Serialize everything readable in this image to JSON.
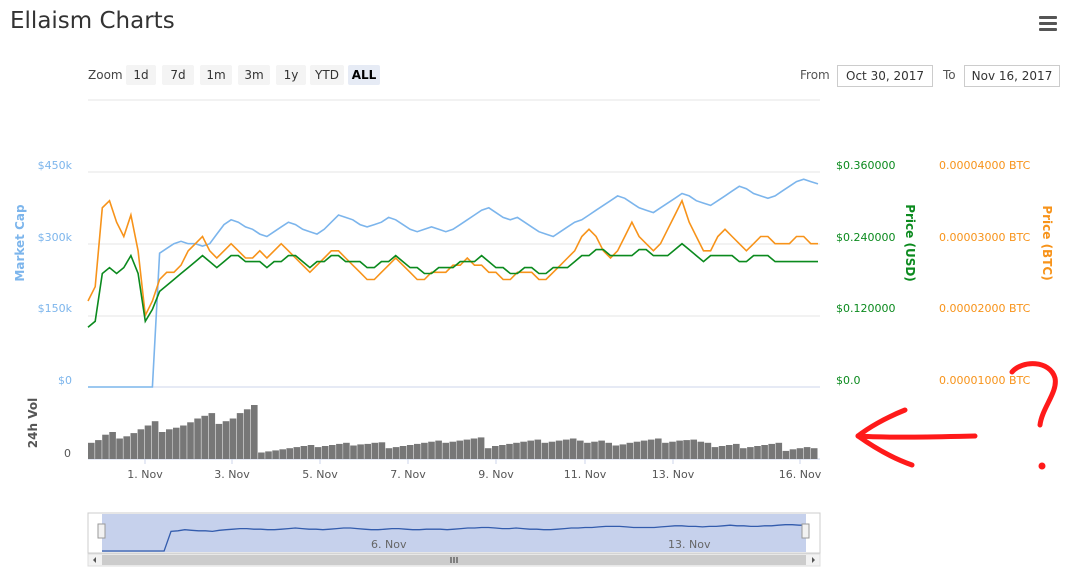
{
  "page": {
    "title": "Ellaism Charts"
  },
  "toolbar": {
    "zoom_label": "Zoom",
    "zoom_buttons": [
      "1d",
      "7d",
      "1m",
      "3m",
      "1y",
      "YTD",
      "ALL"
    ],
    "active_zoom": "ALL",
    "from_label": "From",
    "from_value": "Oct 30, 2017",
    "to_label": "To",
    "to_value": "Nov 16, 2017"
  },
  "annotation": {
    "text": "?",
    "color": "#ff0000"
  },
  "chart_data": {
    "type": "line",
    "x_ticks": [
      "1. Nov",
      "3. Nov",
      "5. Nov",
      "7. Nov",
      "9. Nov",
      "11. Nov",
      "13. Nov",
      "16. Nov"
    ],
    "x_range": [
      "2017-10-30",
      "2017-11-16"
    ],
    "navigator_ticks": [
      "6. Nov",
      "13. Nov"
    ],
    "axes": {
      "market_cap": {
        "label": "Market Cap",
        "ticks": [
          "$0",
          "$150k",
          "$300k",
          "$450k"
        ],
        "range": [
          0,
          450000
        ],
        "color": "#7cb5ec"
      },
      "price_usd": {
        "label": "Price (USD)",
        "ticks": [
          "$0.0",
          "$0.120000",
          "$0.240000",
          "$0.360000"
        ],
        "range": [
          0,
          0.36
        ],
        "color": "#0b8a1e"
      },
      "price_btc": {
        "label": "Price (BTC)",
        "ticks": [
          "0.00001000 BTC",
          "0.00002000 BTC",
          "0.00003000 BTC",
          "0.00004000 BTC"
        ],
        "range": [
          1e-05,
          4e-05
        ],
        "color": "#f7931a"
      },
      "volume": {
        "label": "24h Vol",
        "ticks": [
          "0"
        ],
        "color": "#666666"
      }
    },
    "grid": true,
    "series": [
      {
        "name": "Market Cap",
        "color": "#7cb5ec",
        "values": [
          0,
          0,
          0,
          0,
          0,
          0,
          0,
          0,
          0,
          0,
          280000,
          290000,
          300000,
          305000,
          300000,
          300000,
          295000,
          300000,
          320000,
          340000,
          350000,
          345000,
          335000,
          330000,
          320000,
          315000,
          325000,
          335000,
          345000,
          340000,
          330000,
          325000,
          320000,
          330000,
          345000,
          360000,
          355000,
          350000,
          340000,
          335000,
          340000,
          345000,
          355000,
          350000,
          340000,
          330000,
          325000,
          330000,
          335000,
          330000,
          325000,
          330000,
          340000,
          350000,
          360000,
          370000,
          375000,
          365000,
          355000,
          350000,
          355000,
          345000,
          335000,
          325000,
          320000,
          315000,
          325000,
          335000,
          345000,
          350000,
          360000,
          370000,
          380000,
          390000,
          400000,
          395000,
          385000,
          375000,
          370000,
          365000,
          375000,
          385000,
          395000,
          405000,
          400000,
          390000,
          385000,
          380000,
          390000,
          400000,
          410000,
          420000,
          415000,
          405000,
          400000,
          395000,
          400000,
          410000,
          420000,
          430000,
          435000,
          430000,
          425000
        ]
      },
      {
        "name": "Price (USD)",
        "color": "#0b8a1e",
        "values": [
          0.1,
          0.11,
          0.19,
          0.2,
          0.19,
          0.2,
          0.22,
          0.19,
          0.11,
          0.13,
          0.16,
          0.17,
          0.18,
          0.19,
          0.2,
          0.21,
          0.22,
          0.21,
          0.2,
          0.21,
          0.22,
          0.22,
          0.21,
          0.21,
          0.21,
          0.2,
          0.21,
          0.21,
          0.22,
          0.22,
          0.21,
          0.2,
          0.21,
          0.21,
          0.22,
          0.22,
          0.21,
          0.21,
          0.21,
          0.2,
          0.2,
          0.21,
          0.21,
          0.22,
          0.21,
          0.2,
          0.2,
          0.19,
          0.19,
          0.2,
          0.2,
          0.2,
          0.21,
          0.21,
          0.21,
          0.22,
          0.21,
          0.2,
          0.2,
          0.19,
          0.19,
          0.2,
          0.2,
          0.19,
          0.19,
          0.2,
          0.2,
          0.2,
          0.21,
          0.22,
          0.22,
          0.23,
          0.23,
          0.22,
          0.22,
          0.22,
          0.22,
          0.23,
          0.23,
          0.22,
          0.22,
          0.22,
          0.23,
          0.24,
          0.23,
          0.22,
          0.21,
          0.22,
          0.22,
          0.22,
          0.22,
          0.21,
          0.21,
          0.22,
          0.22,
          0.22,
          0.21,
          0.21,
          0.21,
          0.21,
          0.21,
          0.21,
          0.21
        ]
      },
      {
        "name": "Price (BTC)",
        "color": "#f7931a",
        "values": [
          2.2e-05,
          2.4e-05,
          3.5e-05,
          3.6e-05,
          3.3e-05,
          3.1e-05,
          3.4e-05,
          2.9e-05,
          2e-05,
          2.2e-05,
          2.5e-05,
          2.6e-05,
          2.6e-05,
          2.7e-05,
          2.9e-05,
          3e-05,
          3.1e-05,
          2.9e-05,
          2.8e-05,
          2.9e-05,
          3e-05,
          2.9e-05,
          2.8e-05,
          2.8e-05,
          2.9e-05,
          2.8e-05,
          2.9e-05,
          3e-05,
          2.9e-05,
          2.8e-05,
          2.7e-05,
          2.6e-05,
          2.7e-05,
          2.8e-05,
          2.9e-05,
          2.9e-05,
          2.8e-05,
          2.7e-05,
          2.6e-05,
          2.5e-05,
          2.5e-05,
          2.6e-05,
          2.7e-05,
          2.8e-05,
          2.7e-05,
          2.6e-05,
          2.5e-05,
          2.5e-05,
          2.6e-05,
          2.6e-05,
          2.6e-05,
          2.7e-05,
          2.7e-05,
          2.8e-05,
          2.7e-05,
          2.7e-05,
          2.6e-05,
          2.6e-05,
          2.5e-05,
          2.5e-05,
          2.6e-05,
          2.6e-05,
          2.6e-05,
          2.5e-05,
          2.5e-05,
          2.6e-05,
          2.7e-05,
          2.8e-05,
          2.9e-05,
          3.1e-05,
          3.2e-05,
          3.1e-05,
          2.9e-05,
          2.8e-05,
          2.9e-05,
          3.1e-05,
          3.3e-05,
          3.1e-05,
          3e-05,
          2.9e-05,
          3e-05,
          3.2e-05,
          3.4e-05,
          3.6e-05,
          3.3e-05,
          3.1e-05,
          2.9e-05,
          2.9e-05,
          3.1e-05,
          3.2e-05,
          3.1e-05,
          3e-05,
          2.9e-05,
          3e-05,
          3.1e-05,
          3.1e-05,
          3e-05,
          3e-05,
          3e-05,
          3.1e-05,
          3.1e-05,
          3e-05,
          3e-05
        ]
      }
    ],
    "volume": {
      "name": "24h Vol",
      "color": "#777777",
      "values": [
        0.3,
        0.35,
        0.45,
        0.5,
        0.38,
        0.42,
        0.48,
        0.55,
        0.62,
        0.7,
        0.5,
        0.55,
        0.58,
        0.62,
        0.68,
        0.75,
        0.8,
        0.85,
        0.65,
        0.7,
        0.75,
        0.85,
        0.92,
        1.0,
        0.12,
        0.14,
        0.16,
        0.18,
        0.2,
        0.22,
        0.24,
        0.26,
        0.22,
        0.24,
        0.26,
        0.28,
        0.3,
        0.25,
        0.27,
        0.28,
        0.3,
        0.31,
        0.2,
        0.22,
        0.24,
        0.26,
        0.28,
        0.3,
        0.32,
        0.34,
        0.3,
        0.32,
        0.34,
        0.36,
        0.38,
        0.4,
        0.2,
        0.24,
        0.26,
        0.28,
        0.3,
        0.32,
        0.34,
        0.36,
        0.3,
        0.32,
        0.34,
        0.36,
        0.38,
        0.34,
        0.3,
        0.32,
        0.34,
        0.3,
        0.25,
        0.27,
        0.3,
        0.32,
        0.34,
        0.36,
        0.38,
        0.3,
        0.32,
        0.34,
        0.35,
        0.36,
        0.32,
        0.3,
        0.22,
        0.24,
        0.26,
        0.28,
        0.2,
        0.22,
        0.24,
        0.26,
        0.28,
        0.3,
        0.15,
        0.18,
        0.2,
        0.22,
        0.2
      ]
    },
    "navigator": {
      "color": "#335cad",
      "values": [
        0,
        0,
        0,
        0,
        0,
        0,
        0,
        0,
        0,
        0,
        0.35,
        0.36,
        0.38,
        0.37,
        0.36,
        0.36,
        0.35,
        0.37,
        0.38,
        0.39,
        0.4,
        0.4,
        0.39,
        0.39,
        0.38,
        0.38,
        0.39,
        0.4,
        0.41,
        0.4,
        0.39,
        0.39,
        0.38,
        0.39,
        0.4,
        0.41,
        0.41,
        0.4,
        0.39,
        0.38,
        0.38,
        0.39,
        0.4,
        0.4,
        0.39,
        0.38,
        0.38,
        0.39,
        0.39,
        0.39,
        0.38,
        0.39,
        0.4,
        0.41,
        0.41,
        0.42,
        0.42,
        0.41,
        0.4,
        0.4,
        0.41,
        0.4,
        0.39,
        0.39,
        0.38,
        0.38,
        0.39,
        0.4,
        0.41,
        0.41,
        0.42,
        0.42,
        0.43,
        0.44,
        0.44,
        0.44,
        0.43,
        0.42,
        0.42,
        0.42,
        0.42,
        0.43,
        0.44,
        0.45,
        0.45,
        0.44,
        0.44,
        0.43,
        0.44,
        0.44,
        0.45,
        0.46,
        0.45,
        0.45,
        0.44,
        0.44,
        0.45,
        0.45,
        0.46,
        0.47,
        0.47,
        0.46,
        0.46
      ]
    }
  }
}
